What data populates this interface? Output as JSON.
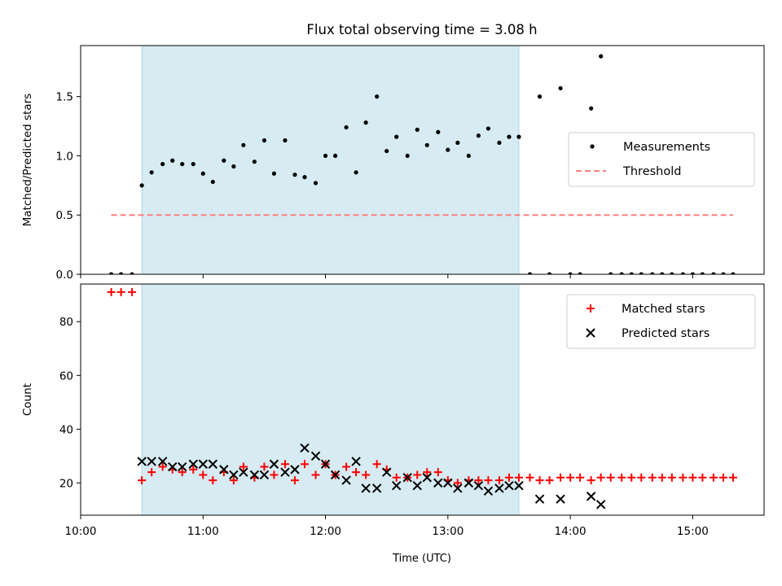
{
  "chart_data": {
    "title": "Flux total observing time = 3.08 h",
    "xlabel": "Time (UTC)",
    "xlim_hours": [
      10.0,
      15.583
    ],
    "xticks": [
      {
        "value": 10,
        "label": "10:00"
      },
      {
        "value": 11,
        "label": "11:00"
      },
      {
        "value": 12,
        "label": "12:00"
      },
      {
        "value": 13,
        "label": "13:00"
      },
      {
        "value": 14,
        "label": "14:00"
      },
      {
        "value": 15,
        "label": "15:00"
      }
    ],
    "shaded_interval_hours": [
      10.5,
      13.58
    ],
    "shade_color": "#add8e6",
    "panels": [
      {
        "type": "scatter",
        "ylabel": "Matched/Predicted stars",
        "ylim": [
          0,
          1.93
        ],
        "yticks": [
          {
            "value": 0,
            "label": "0.0"
          },
          {
            "value": 0.5,
            "label": "0.5"
          },
          {
            "value": 1.0,
            "label": "1.0"
          },
          {
            "value": 1.5,
            "label": "1.5"
          }
        ],
        "legend_position": "center-right",
        "series": [
          {
            "name": "Measurements",
            "marker": "dot",
            "color": "#000000",
            "points": [
              [
                10.25,
                0
              ],
              [
                10.33,
                0
              ],
              [
                10.42,
                0
              ],
              [
                10.5,
                0.75
              ],
              [
                10.58,
                0.86
              ],
              [
                10.67,
                0.93
              ],
              [
                10.75,
                0.96
              ],
              [
                10.83,
                0.93
              ],
              [
                10.92,
                0.93
              ],
              [
                11.0,
                0.85
              ],
              [
                11.08,
                0.78
              ],
              [
                11.17,
                0.96
              ],
              [
                11.25,
                0.91
              ],
              [
                11.33,
                1.09
              ],
              [
                11.42,
                0.95
              ],
              [
                11.5,
                1.13
              ],
              [
                11.58,
                0.85
              ],
              [
                11.67,
                1.13
              ],
              [
                11.75,
                0.84
              ],
              [
                11.83,
                0.82
              ],
              [
                11.92,
                0.77
              ],
              [
                12.0,
                1.0
              ],
              [
                12.08,
                1.0
              ],
              [
                12.17,
                1.24
              ],
              [
                12.25,
                0.86
              ],
              [
                12.33,
                1.28
              ],
              [
                12.42,
                1.5
              ],
              [
                12.5,
                1.04
              ],
              [
                12.58,
                1.16
              ],
              [
                12.67,
                1.0
              ],
              [
                12.75,
                1.22
              ],
              [
                12.83,
                1.09
              ],
              [
                12.92,
                1.2
              ],
              [
                13.0,
                1.05
              ],
              [
                13.08,
                1.11
              ],
              [
                13.17,
                1.0
              ],
              [
                13.25,
                1.17
              ],
              [
                13.33,
                1.23
              ],
              [
                13.42,
                1.11
              ],
              [
                13.5,
                1.16
              ],
              [
                13.58,
                1.16
              ],
              [
                13.67,
                0
              ],
              [
                13.75,
                1.5
              ],
              [
                13.83,
                0
              ],
              [
                13.92,
                1.57
              ],
              [
                14.0,
                0
              ],
              [
                14.08,
                0
              ],
              [
                14.17,
                1.4
              ],
              [
                14.25,
                1.84
              ],
              [
                14.33,
                0
              ],
              [
                14.42,
                0
              ],
              [
                14.5,
                0
              ],
              [
                14.58,
                0
              ],
              [
                14.67,
                0
              ],
              [
                14.75,
                0
              ],
              [
                14.83,
                0
              ],
              [
                14.92,
                0
              ],
              [
                15.0,
                0
              ],
              [
                15.08,
                0
              ],
              [
                15.17,
                0
              ],
              [
                15.25,
                0
              ],
              [
                15.33,
                0
              ]
            ]
          },
          {
            "name": "Threshold",
            "marker": "dashed-line",
            "color": "#ff7f7f",
            "points": [
              [
                10.25,
                0.5
              ],
              [
                15.33,
                0.5
              ]
            ]
          }
        ]
      },
      {
        "type": "scatter",
        "ylabel": "Count",
        "ylim": [
          8,
          94
        ],
        "yticks": [
          {
            "value": 20,
            "label": "20"
          },
          {
            "value": 40,
            "label": "40"
          },
          {
            "value": 60,
            "label": "60"
          },
          {
            "value": 80,
            "label": "80"
          }
        ],
        "legend_position": "top-right",
        "series": [
          {
            "name": "Matched stars",
            "marker": "plus",
            "color": "#ff0000",
            "points": [
              [
                10.25,
                91
              ],
              [
                10.33,
                91
              ],
              [
                10.42,
                91
              ],
              [
                10.5,
                21
              ],
              [
                10.58,
                24
              ],
              [
                10.67,
                26
              ],
              [
                10.75,
                25
              ],
              [
                10.83,
                24
              ],
              [
                10.92,
                25
              ],
              [
                11.0,
                23
              ],
              [
                11.08,
                21
              ],
              [
                11.17,
                24
              ],
              [
                11.25,
                21
              ],
              [
                11.33,
                26
              ],
              [
                11.42,
                22
              ],
              [
                11.5,
                26
              ],
              [
                11.58,
                23
              ],
              [
                11.67,
                27
              ],
              [
                11.75,
                21
              ],
              [
                11.83,
                27
              ],
              [
                11.92,
                23
              ],
              [
                12.0,
                27
              ],
              [
                12.08,
                23
              ],
              [
                12.17,
                26
              ],
              [
                12.25,
                24
              ],
              [
                12.33,
                23
              ],
              [
                12.42,
                27
              ],
              [
                12.5,
                25
              ],
              [
                12.58,
                22
              ],
              [
                12.67,
                22
              ],
              [
                12.75,
                23
              ],
              [
                12.83,
                24
              ],
              [
                12.92,
                24
              ],
              [
                13.0,
                21
              ],
              [
                13.08,
                20
              ],
              [
                13.17,
                21
              ],
              [
                13.25,
                21
              ],
              [
                13.33,
                21
              ],
              [
                13.42,
                21
              ],
              [
                13.5,
                22
              ],
              [
                13.58,
                22
              ],
              [
                13.67,
                22
              ],
              [
                13.75,
                21
              ],
              [
                13.83,
                21
              ],
              [
                13.92,
                22
              ],
              [
                14.0,
                22
              ],
              [
                14.08,
                22
              ],
              [
                14.17,
                21
              ],
              [
                14.25,
                22
              ],
              [
                14.33,
                22
              ],
              [
                14.42,
                22
              ],
              [
                14.5,
                22
              ],
              [
                14.58,
                22
              ],
              [
                14.67,
                22
              ],
              [
                14.75,
                22
              ],
              [
                14.83,
                22
              ],
              [
                14.92,
                22
              ],
              [
                15.0,
                22
              ],
              [
                15.08,
                22
              ],
              [
                15.17,
                22
              ],
              [
                15.25,
                22
              ],
              [
                15.33,
                22
              ]
            ]
          },
          {
            "name": "Predicted stars",
            "marker": "x",
            "color": "#000000",
            "points": [
              [
                10.5,
                28
              ],
              [
                10.58,
                28
              ],
              [
                10.67,
                28
              ],
              [
                10.75,
                26
              ],
              [
                10.83,
                26
              ],
              [
                10.92,
                27
              ],
              [
                11.0,
                27
              ],
              [
                11.08,
                27
              ],
              [
                11.17,
                25
              ],
              [
                11.25,
                23
              ],
              [
                11.33,
                24
              ],
              [
                11.42,
                23
              ],
              [
                11.5,
                23
              ],
              [
                11.58,
                27
              ],
              [
                11.67,
                24
              ],
              [
                11.75,
                25
              ],
              [
                11.83,
                33
              ],
              [
                11.92,
                30
              ],
              [
                12.0,
                27
              ],
              [
                12.08,
                23
              ],
              [
                12.17,
                21
              ],
              [
                12.25,
                28
              ],
              [
                12.33,
                18
              ],
              [
                12.42,
                18
              ],
              [
                12.5,
                24
              ],
              [
                12.58,
                19
              ],
              [
                12.67,
                22
              ],
              [
                12.75,
                19
              ],
              [
                12.83,
                22
              ],
              [
                12.92,
                20
              ],
              [
                13.0,
                20
              ],
              [
                13.08,
                18
              ],
              [
                13.17,
                20
              ],
              [
                13.25,
                19
              ],
              [
                13.33,
                17
              ],
              [
                13.42,
                18
              ],
              [
                13.5,
                19
              ],
              [
                13.58,
                19
              ],
              [
                13.75,
                14
              ],
              [
                13.92,
                14
              ],
              [
                14.17,
                15
              ],
              [
                14.25,
                12
              ]
            ]
          }
        ]
      }
    ]
  }
}
